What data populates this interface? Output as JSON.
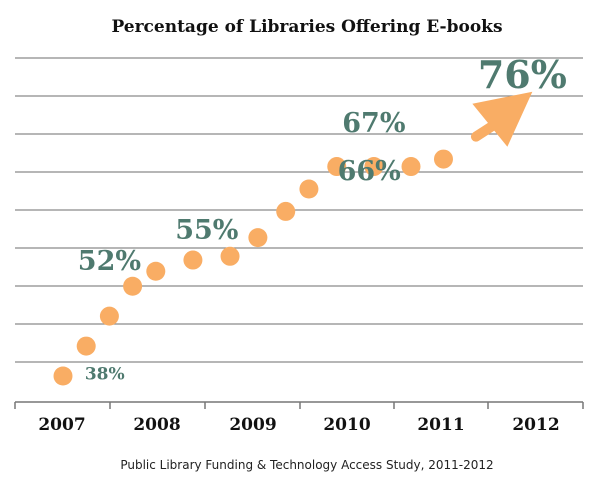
{
  "chart_data": {
    "type": "scatter",
    "title": "Percentage of Libraries Offering E-books",
    "xlabel": "",
    "ylabel": "",
    "x_ticks": [
      "2007",
      "2008",
      "2009",
      "2010",
      "2011",
      "2012"
    ],
    "xlim": [
      2007,
      2012
    ],
    "ylim": [
      35,
      80
    ],
    "grid": true,
    "point_color": "#f9ad64",
    "label_color": "#4f7a6f",
    "points": [
      {
        "x": 2007.0,
        "y": 38.0
      },
      {
        "x": 2007.25,
        "y": 42.0
      },
      {
        "x": 2007.5,
        "y": 46.0
      },
      {
        "x": 2007.75,
        "y": 50.0
      },
      {
        "x": 2008.0,
        "y": 52.0
      },
      {
        "x": 2008.4,
        "y": 53.5
      },
      {
        "x": 2008.8,
        "y": 54.0
      },
      {
        "x": 2009.1,
        "y": 56.5
      },
      {
        "x": 2009.4,
        "y": 60.0
      },
      {
        "x": 2009.65,
        "y": 63.0
      },
      {
        "x": 2009.95,
        "y": 66.0
      },
      {
        "x": 2010.35,
        "y": 66.0
      },
      {
        "x": 2010.75,
        "y": 66.0
      },
      {
        "x": 2011.1,
        "y": 67.0
      }
    ],
    "annotations": [
      {
        "text": "38%",
        "x": 2007.45,
        "y": 37.5,
        "size": "small"
      },
      {
        "text": "52%",
        "x": 2007.5,
        "y": 52.2,
        "size": "medium"
      },
      {
        "text": "55%",
        "x": 2008.55,
        "y": 56.3,
        "size": "medium"
      },
      {
        "text": "66%",
        "x": 2010.3,
        "y": 64.2,
        "size": "medium"
      },
      {
        "text": "67%",
        "x": 2010.35,
        "y": 70.6,
        "size": "medium"
      },
      {
        "text": "76%",
        "x": 2011.95,
        "y": 76.5,
        "size": "large"
      }
    ],
    "arrow": {
      "from": {
        "x": 2011.45,
        "y": 70.0
      },
      "to": {
        "x": 2011.95,
        "y": 76.0
      }
    }
  },
  "source": "Public Library Funding & Technology Access Study, 2011-2012"
}
